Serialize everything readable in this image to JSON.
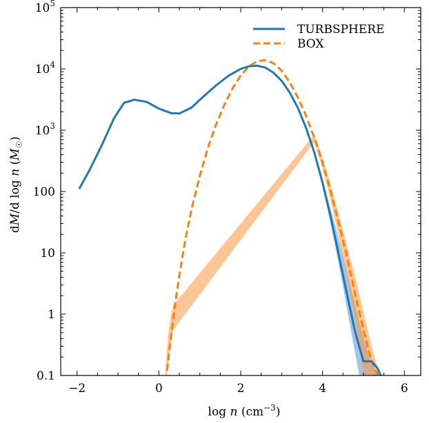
{
  "chart_data": {
    "type": "line",
    "xlabel": "log n (cm⁻³)",
    "ylabel": "dM/d log n (M☉)",
    "xlim": [
      -2.4,
      6.4
    ],
    "ylim": [
      0.1,
      100000
    ],
    "y_scale": "log",
    "x_ticks": [
      -2,
      0,
      2,
      4,
      6
    ],
    "x_tick_labels": [
      "−2",
      "0",
      "2",
      "4",
      "6"
    ],
    "y_ticks": [
      0.1,
      1,
      10,
      100,
      1000,
      10000,
      100000
    ],
    "y_tick_labels": [
      {
        "base": "0.1",
        "exp": ""
      },
      {
        "base": "1",
        "exp": ""
      },
      {
        "base": "10",
        "exp": ""
      },
      {
        "base": "100",
        "exp": ""
      },
      {
        "base": "10",
        "exp": "3"
      },
      {
        "base": "10",
        "exp": "4"
      },
      {
        "base": "10",
        "exp": "5"
      }
    ],
    "legend_position": "top-right",
    "grid": false,
    "series": [
      {
        "name": "TURBSPHERE",
        "color": "#1f77b4",
        "style": "solid",
        "x": [
          -1.95,
          -1.7,
          -1.4,
          -1.1,
          -0.85,
          -0.6,
          -0.3,
          0.0,
          0.3,
          0.5,
          0.8,
          1.1,
          1.4,
          1.7,
          2.0,
          2.2,
          2.4,
          2.6,
          2.8,
          3.0,
          3.2,
          3.4,
          3.6,
          3.8,
          4.0,
          4.2,
          4.4,
          4.6,
          4.8,
          5.0,
          5.2,
          5.35,
          5.42
        ],
        "y": [
          110,
          220,
          560,
          1550,
          2800,
          3150,
          2900,
          2250,
          1900,
          1870,
          2350,
          3600,
          5400,
          7700,
          10000,
          11000,
          11300,
          10500,
          8700,
          6400,
          4100,
          2300,
          1080,
          430,
          140,
          38,
          9,
          2.1,
          0.5,
          0.17,
          0.17,
          0.13,
          0.1
        ],
        "band": {
          "x": [
            3.9,
            4.1,
            4.3,
            4.5,
            4.7,
            4.9,
            5.1,
            5.3,
            5.5,
            5.65
          ],
          "lower": [
            240,
            60,
            14,
            2.8,
            0.5,
            0.1,
            0.1,
            0.1,
            0.1,
            0.1
          ],
          "upper": [
            290,
            90,
            30,
            9,
            2.6,
            0.75,
            0.25,
            0.12,
            0.1,
            0.1
          ]
        }
      },
      {
        "name": "BOX",
        "color": "#ff7f0e",
        "style": "dashed",
        "x": [
          0.2,
          0.3,
          0.4,
          0.5,
          0.6,
          0.7,
          0.8,
          1.0,
          1.2,
          1.4,
          1.6,
          1.8,
          2.0,
          2.2,
          2.4,
          2.6,
          2.8,
          3.0,
          3.2,
          3.4,
          3.6,
          3.8,
          4.0,
          4.2,
          4.4,
          4.6,
          4.8,
          5.0,
          5.2,
          5.35
        ],
        "y": [
          0.12,
          0.45,
          1.5,
          4.2,
          11,
          25,
          52,
          180,
          520,
          1250,
          2600,
          4800,
          7800,
          11000,
          13300,
          13900,
          12400,
          9400,
          6000,
          3400,
          1700,
          750,
          300,
          100,
          30,
          8.5,
          2.1,
          0.55,
          0.17,
          0.1
        ],
        "band": {
          "x": [
            0.15,
            0.2,
            0.25,
            0.3,
            0.35,
            3.8,
            4.0,
            4.2,
            4.4,
            4.6,
            4.8,
            5.0,
            5.2,
            5.4
          ],
          "lower": [
            0.1,
            0.1,
            0.2,
            0.35,
            0.55,
            650,
            240,
            70,
            18,
            4,
            0.8,
            0.1,
            0.1,
            0.1
          ],
          "upper": [
            0.1,
            0.28,
            0.6,
            1.0,
            1.4,
            850,
            360,
            130,
            42,
            13,
            4,
            1.1,
            0.3,
            0.1
          ]
        }
      }
    ]
  }
}
